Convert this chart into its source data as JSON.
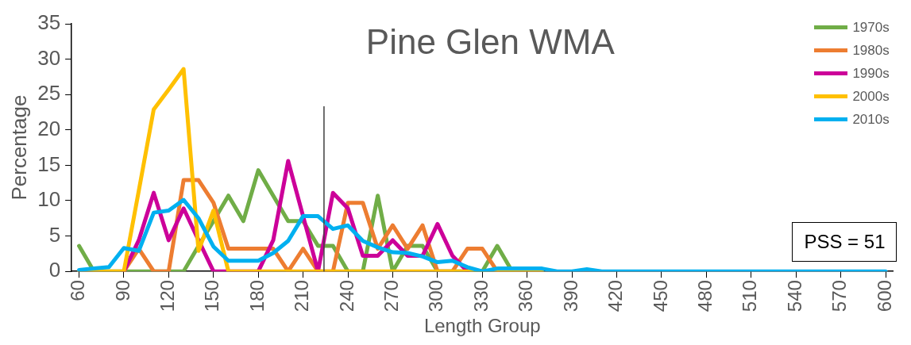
{
  "chart_data": {
    "type": "line",
    "title": "Pine Glen WMA",
    "xlabel": "Length Group",
    "ylabel": "Percentage",
    "x": [
      60,
      70,
      80,
      90,
      100,
      110,
      120,
      130,
      140,
      150,
      160,
      170,
      180,
      190,
      200,
      210,
      220,
      230,
      240,
      250,
      260,
      270,
      280,
      290,
      300,
      310,
      320,
      330,
      340,
      350,
      360,
      370,
      380,
      390,
      400,
      410,
      420,
      430,
      440,
      450,
      460,
      470,
      480,
      490,
      500,
      510,
      520,
      530,
      540,
      550,
      560,
      570,
      580,
      590,
      600
    ],
    "xlim": [
      55,
      605
    ],
    "xticks": [
      60,
      90,
      120,
      150,
      180,
      210,
      240,
      270,
      300,
      330,
      360,
      390,
      420,
      450,
      480,
      510,
      540,
      570,
      600
    ],
    "ylim": [
      0,
      35
    ],
    "yticks": [
      0,
      5,
      10,
      15,
      20,
      25,
      30,
      35
    ],
    "series": [
      {
        "name": "1970s",
        "color": "#70ad47",
        "values": [
          3.6,
          0,
          0,
          0,
          0,
          0,
          0,
          0,
          3.6,
          7.1,
          10.7,
          7.1,
          14.3,
          10.7,
          7.1,
          7.1,
          3.6,
          3.6,
          0,
          0,
          10.7,
          0,
          3.6,
          3.6,
          0,
          0,
          0,
          0,
          3.6,
          0,
          null,
          null,
          null,
          null,
          null,
          null,
          null,
          null,
          null,
          null,
          null,
          null,
          null,
          null,
          null,
          null,
          null,
          null,
          null,
          null,
          null,
          null,
          null,
          null,
          null
        ]
      },
      {
        "name": "1980s",
        "color": "#ed7d31",
        "values": [
          null,
          null,
          null,
          0,
          3.2,
          0,
          0,
          12.9,
          12.9,
          9.7,
          3.2,
          3.2,
          3.2,
          3.2,
          0,
          3.2,
          0,
          0,
          9.7,
          9.7,
          3.2,
          6.5,
          3.2,
          6.5,
          0,
          0,
          3.2,
          3.2,
          0,
          null,
          null,
          null,
          null,
          null,
          null,
          null,
          null,
          null,
          null,
          null,
          null,
          null,
          null,
          null,
          null,
          null,
          null,
          null,
          null,
          null,
          null,
          null,
          null,
          null,
          null
        ]
      },
      {
        "name": "1990s",
        "color": "#cc0099",
        "values": [
          null,
          null,
          null,
          0,
          4.4,
          11.1,
          4.4,
          8.9,
          4.4,
          0,
          0,
          0,
          0,
          4.4,
          15.6,
          7.8,
          0,
          11.1,
          8.9,
          2.2,
          2.2,
          4.4,
          2.2,
          2.2,
          6.7,
          2.2,
          0,
          null,
          null,
          null,
          null,
          null,
          null,
          null,
          null,
          null,
          null,
          null,
          null,
          null,
          null,
          null,
          null,
          null,
          null,
          null,
          null,
          null,
          null,
          null,
          null,
          null,
          null,
          null,
          null
        ]
      },
      {
        "name": "2000s",
        "color": "#ffc000",
        "values": [
          0,
          0,
          0,
          0,
          11.4,
          22.9,
          25.7,
          28.6,
          2.9,
          8.6,
          0,
          0,
          0,
          0,
          0,
          0,
          0,
          0,
          0,
          0,
          0,
          0,
          0,
          0,
          0,
          0,
          0,
          0,
          0,
          0,
          0,
          0,
          null,
          null,
          null,
          null,
          null,
          null,
          null,
          null,
          null,
          null,
          null,
          null,
          null,
          null,
          null,
          null,
          null,
          null,
          null,
          null,
          null,
          null,
          null
        ]
      },
      {
        "name": "2010s",
        "color": "#00b0f0",
        "values": [
          0.2,
          0.4,
          0.6,
          3.3,
          2.9,
          8.3,
          8.6,
          10.1,
          7.5,
          3.5,
          1.5,
          1.5,
          1.5,
          2.6,
          4.3,
          7.8,
          7.8,
          6.0,
          6.5,
          4.3,
          3.4,
          2.7,
          2.6,
          2.1,
          1.3,
          1.5,
          0.6,
          0,
          0.4,
          0.4,
          0.4,
          0.4,
          0,
          0,
          0.3,
          0,
          0,
          0,
          0,
          0,
          0,
          0,
          0,
          0,
          0,
          0,
          0,
          0,
          0,
          0,
          0,
          0,
          0,
          0,
          0
        ]
      }
    ],
    "ref_lines": [
      {
        "axis": "x",
        "value": 224,
        "color": "#404040"
      }
    ],
    "annotations": [
      "PSS = 51"
    ],
    "legend": "top right",
    "grid": false,
    "marker": "none",
    "line_style": "solid"
  }
}
